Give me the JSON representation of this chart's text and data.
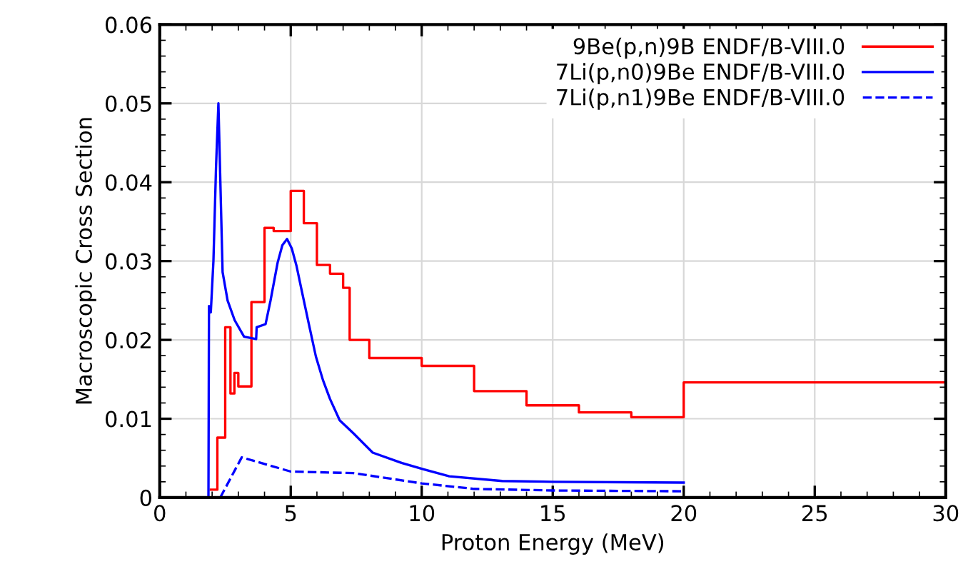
{
  "chart_data": {
    "type": "step",
    "xlabel": "Proton Energy (MeV)",
    "ylabel": "Macroscopic Cross Section",
    "xlim": [
      0,
      30
    ],
    "ylim": [
      0,
      0.06
    ],
    "xticks": [
      0,
      5,
      10,
      15,
      20,
      25,
      30
    ],
    "yticks": [
      0,
      0.01,
      0.02,
      0.03,
      0.04,
      0.05,
      0.06
    ],
    "grid": true,
    "legend": "top right",
    "series": [
      {
        "name": "9Be(p,n)9B ENDF/B-VIII.0",
        "color": "#ff0000",
        "line_style": "solid",
        "x": [
          1.95,
          2.2,
          2.5,
          2.7,
          2.85,
          3.0,
          3.5,
          4.0,
          4.35,
          5.0,
          5.5,
          6.0,
          6.5,
          7.0,
          7.25,
          8.0,
          10,
          12,
          14,
          16,
          18,
          20,
          30
        ],
        "values": [
          0.001,
          0.0076,
          0.0216,
          0.0132,
          0.0158,
          0.0141,
          0.0248,
          0.0342,
          0.0338,
          0.0389,
          0.0348,
          0.0295,
          0.0284,
          0.0266,
          0.02,
          0.0177,
          0.0167,
          0.0135,
          0.0117,
          0.0108,
          0.0102,
          0.0146,
          0.0146
        ]
      },
      {
        "name": "7Li(p,n0)9Be ENDF/B-VIII.0",
        "color": "#0000ff",
        "type": "line",
        "line_style": "solid",
        "x": [
          1.86,
          1.88,
          1.95,
          2.05,
          2.15,
          2.24,
          2.4,
          2.59,
          2.86,
          3.22,
          3.68,
          3.7,
          4.04,
          4.23,
          4.5,
          4.68,
          4.86,
          5.04,
          5.22,
          5.41,
          5.68,
          5.96,
          6.23,
          6.5,
          6.87,
          7.41,
          8.13,
          9.23,
          10.05,
          11.05,
          13.07,
          15,
          20
        ],
        "values": [
          0,
          0.0243,
          0.0235,
          0.03,
          0.042,
          0.05,
          0.0286,
          0.025,
          0.0225,
          0.0204,
          0.0201,
          0.0216,
          0.022,
          0.025,
          0.0298,
          0.032,
          0.0328,
          0.0316,
          0.0294,
          0.0264,
          0.0222,
          0.0179,
          0.0149,
          0.0125,
          0.0098,
          0.0081,
          0.0057,
          0.0044,
          0.0036,
          0.0027,
          0.0021,
          0.002,
          0.0019
        ]
      },
      {
        "name": "7Li(p,n1)9Be ENDF/B-VIII.0",
        "color": "#0000ff",
        "type": "line",
        "line_style": "dashed",
        "x": [
          2.31,
          3.13,
          5.0,
          7.4,
          10,
          12,
          15,
          20
        ],
        "values": [
          0,
          0.0051,
          0.0033,
          0.0031,
          0.0018,
          0.0011,
          0.0009,
          0.0008
        ]
      }
    ]
  }
}
